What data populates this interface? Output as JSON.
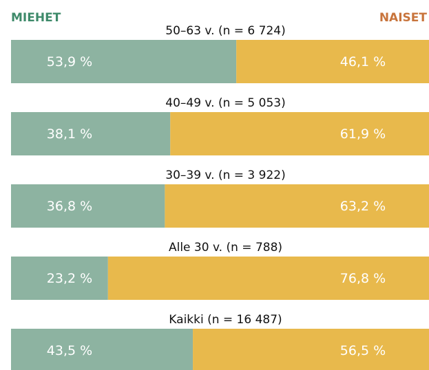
{
  "chart_data": {
    "type": "bar",
    "orientation": "horizontal",
    "stacked": true,
    "categories": [
      "50–63 v. (n = 6 724)",
      "40–49 v. (n = 5 053)",
      "30–39 v. (n = 3 922)",
      "Alle 30 v. (n = 788)",
      "Kaikki (n = 16 487)"
    ],
    "series": [
      {
        "name": "MIEHET",
        "color": "#8db3a1",
        "values": [
          53.9,
          38.1,
          36.8,
          23.2,
          43.5
        ],
        "value_labels": [
          "53,9 %",
          "38,1 %",
          "36,8 %",
          "23,2 %",
          "43,5 %"
        ]
      },
      {
        "name": "NAISET",
        "color": "#e8b94c",
        "values": [
          46.1,
          61.9,
          63.2,
          76.8,
          56.5
        ],
        "value_labels": [
          "46,1 %",
          "61,9 %",
          "63,2 %",
          "76,8 %",
          "56,5 %"
        ]
      }
    ]
  }
}
